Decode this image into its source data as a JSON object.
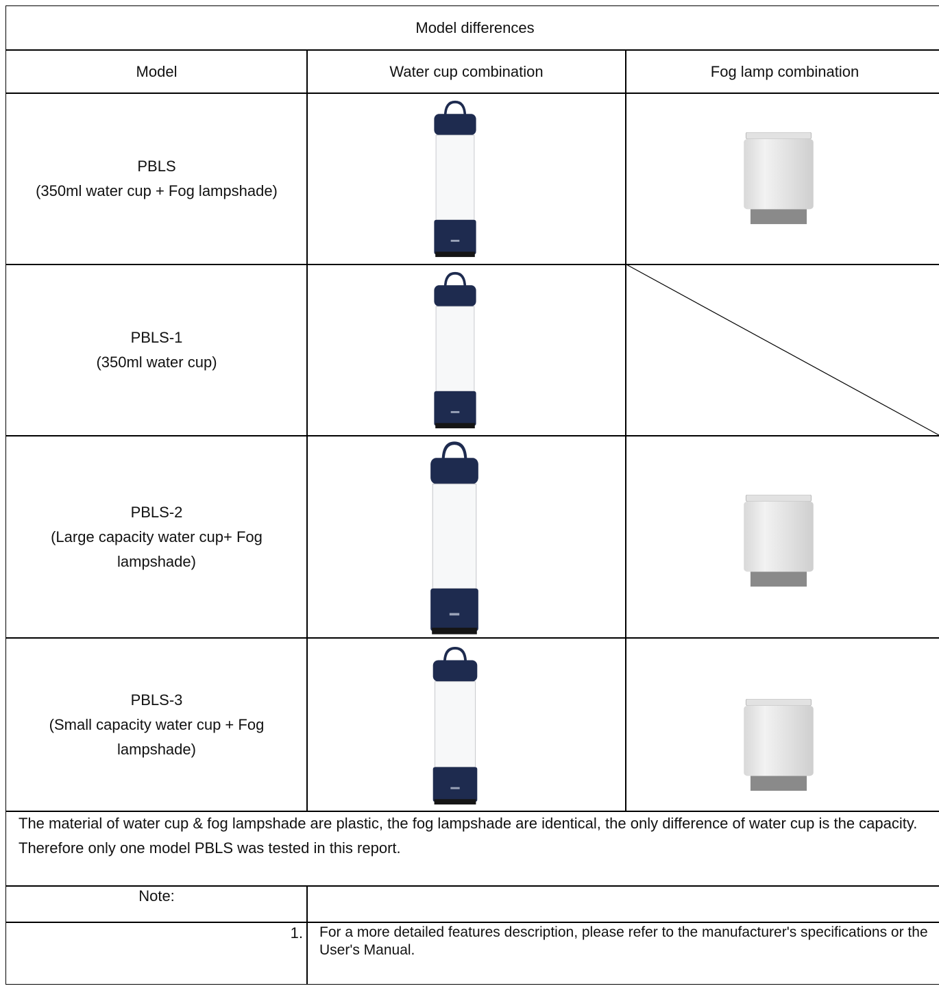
{
  "table": {
    "title": "Model differences",
    "headers": [
      "Model",
      "Water cup combination",
      "Fog lamp combination"
    ],
    "rows": [
      {
        "model": "PBLS",
        "description": "(350ml water cup + Fog lampshade)"
      },
      {
        "model": "PBLS-1",
        "description": "(350ml water cup)"
      },
      {
        "model": "PBLS-2",
        "description": "(Large capacity water cup+ Fog lampshade)"
      },
      {
        "model": "PBLS-3",
        "description": "(Small capacity water cup + Fog lampshade)"
      }
    ],
    "summary": [
      "The material of water cup & fog lampshade are plastic, the fog lampshade are identical, the only difference of water cup is the capacity.",
      "Therefore only one model PBLS was tested in this report."
    ],
    "note_label": "Note:",
    "notes": [
      {
        "number": "1.",
        "text": "For a more detailed features description, please refer to the manufacturer's specifications or the User's Manual."
      }
    ]
  }
}
